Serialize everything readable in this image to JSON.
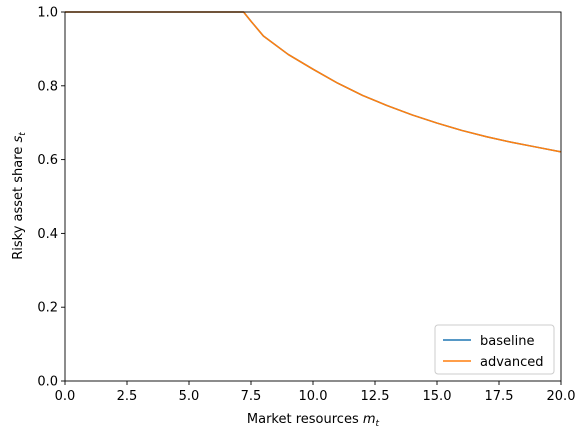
{
  "chart_data": {
    "type": "line",
    "title": "",
    "xlabel": "Market resources",
    "xlabel_math": "m",
    "xlabel_sub": "t",
    "ylabel": "Risky asset share",
    "ylabel_math": "s",
    "ylabel_sub": "t",
    "xlim": [
      0,
      20
    ],
    "ylim": [
      0,
      1.0
    ],
    "xticks": [
      "0.0",
      "2.5",
      "5.0",
      "7.5",
      "10.0",
      "12.5",
      "15.0",
      "17.5",
      "20.0"
    ],
    "yticks": [
      "0.0",
      "0.2",
      "0.4",
      "0.6",
      "0.8",
      "1.0"
    ],
    "grid": false,
    "legend_position": "lower-right",
    "series": [
      {
        "name": "baseline",
        "color": "#1f77b4",
        "x": [
          0,
          1,
          2,
          3,
          4,
          5,
          6,
          7,
          7.2,
          7.5,
          8,
          9,
          10,
          11,
          12,
          13,
          14,
          15,
          16,
          17,
          18,
          19,
          20
        ],
        "y": [
          1.0,
          1.0,
          1.0,
          1.0,
          1.0,
          1.0,
          1.0,
          1.0,
          1.0,
          0.975,
          0.935,
          0.885,
          0.845,
          0.807,
          0.774,
          0.746,
          0.721,
          0.699,
          0.679,
          0.662,
          0.647,
          0.634,
          0.621
        ]
      },
      {
        "name": "advanced",
        "color": "#ff7f0e",
        "x": [
          0,
          1,
          2,
          3,
          4,
          5,
          6,
          7,
          7.2,
          7.5,
          8,
          9,
          10,
          11,
          12,
          13,
          14,
          15,
          16,
          17,
          18,
          19,
          20
        ],
        "y": [
          1.0,
          1.0,
          1.0,
          1.0,
          1.0,
          1.0,
          1.0,
          1.0,
          1.0,
          0.975,
          0.935,
          0.885,
          0.845,
          0.807,
          0.774,
          0.746,
          0.721,
          0.699,
          0.679,
          0.662,
          0.647,
          0.634,
          0.621
        ]
      }
    ]
  }
}
